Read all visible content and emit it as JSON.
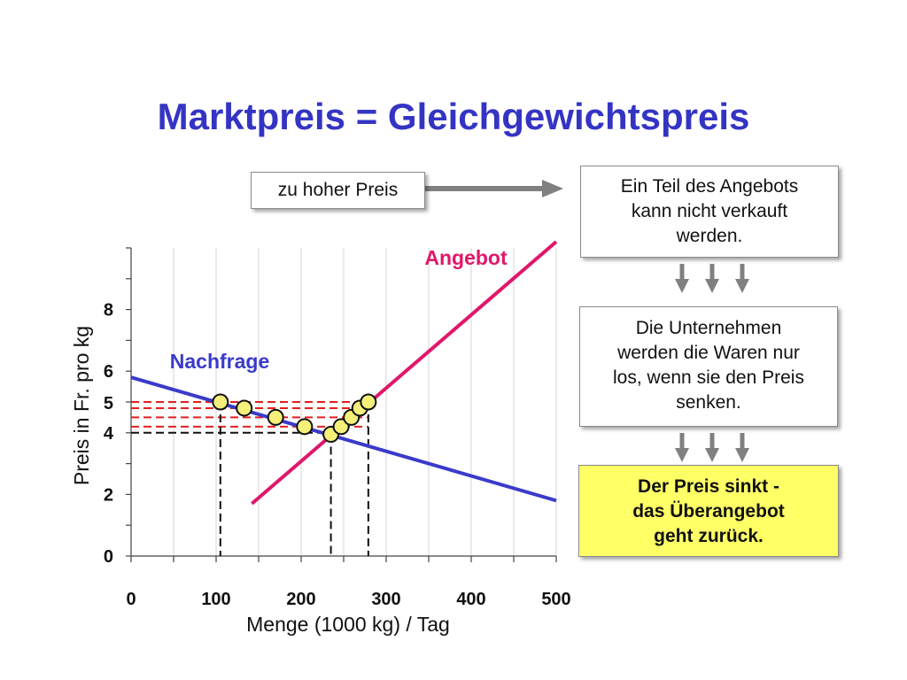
{
  "title": "Marktpreis = Gleichgewichtspreis",
  "boxes": {
    "high_price": "zu hoher Preis",
    "unsold": [
      "Ein Teil des Angebots",
      "kann nicht verkauft",
      "werden."
    ],
    "firms": [
      "Die Unternehmen",
      "werden die Waren nur",
      "los, wenn sie den Preis",
      "senken."
    ],
    "result": [
      "Der Preis sinkt -",
      "das Überangebot",
      "geht zurück."
    ]
  },
  "colors": {
    "title": "#3434c4",
    "supply": "#e0176a",
    "demand": "#3a3acb",
    "highlight_tick": "#e0176a",
    "price_lines": "#e02020",
    "point_fill": "#f5f07a",
    "result_box": "#ffff66",
    "arrows": "#808080"
  },
  "icons": [
    "arrow-right-icon",
    "arrow-down-icon"
  ],
  "chart_data": {
    "type": "line",
    "xlabel": "Menge (1000 kg) / Tag",
    "ylabel": "Preis in Fr. pro kg",
    "xlim": [
      0,
      500
    ],
    "ylim": [
      0,
      10
    ],
    "x_ticks": [
      0,
      100,
      200,
      300,
      400,
      500
    ],
    "y_ticks": [
      0,
      2,
      4,
      6,
      8
    ],
    "highlight_y_tick": 5,
    "grid": "vertical",
    "series": [
      {
        "name": "Angebot",
        "x": [
          142,
          500
        ],
        "y": [
          1.7,
          10.2
        ]
      },
      {
        "name": "Nachfrage",
        "x": [
          0,
          500
        ],
        "y": [
          5.8,
          1.8
        ]
      }
    ],
    "price_points": [
      {
        "x": 105,
        "y": 5.0
      },
      {
        "x": 133,
        "y": 4.8
      },
      {
        "x": 170,
        "y": 4.5
      },
      {
        "x": 204,
        "y": 4.2
      },
      {
        "x": 235,
        "y": 3.95
      },
      {
        "x": 247,
        "y": 4.2
      },
      {
        "x": 259,
        "y": 4.5
      },
      {
        "x": 269,
        "y": 4.8
      },
      {
        "x": 279,
        "y": 5.0
      }
    ],
    "price_lines_y": [
      5.0,
      4.8,
      4.5,
      4.2
    ],
    "equilibrium_line_y": 4.0,
    "quantity_drops_x": [
      105,
      235,
      279
    ]
  }
}
